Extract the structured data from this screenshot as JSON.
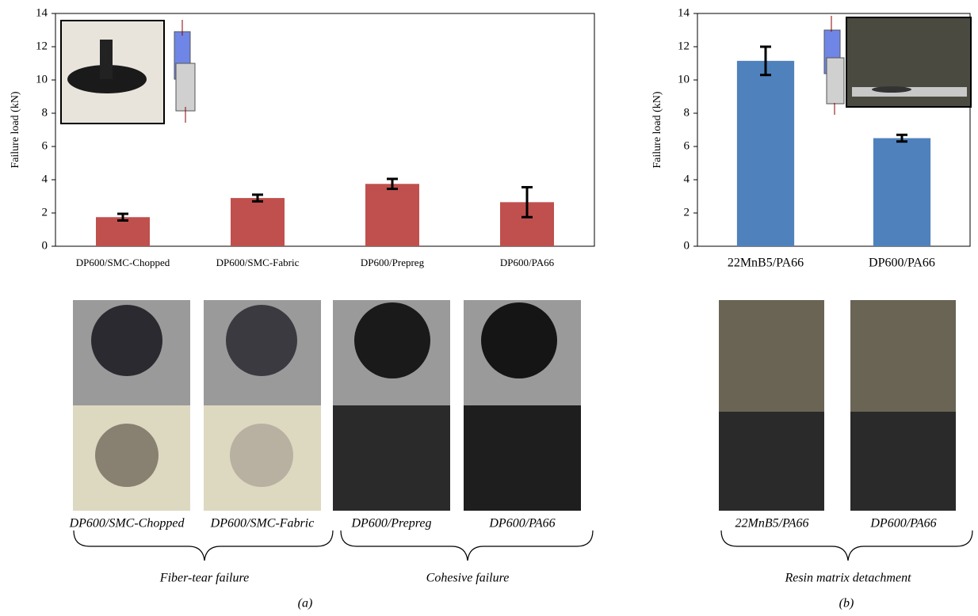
{
  "chart_data": [
    {
      "type": "bar",
      "ylabel": "Failure load  (kN)",
      "categories": [
        "DP600/SMC-Chopped",
        "DP600/SMC-Fabric",
        "DP600/Prepreg",
        "DP600/PA66"
      ],
      "values": [
        1.75,
        2.9,
        3.75,
        2.65
      ],
      "errors": [
        0.2,
        0.2,
        0.3,
        0.9
      ],
      "color": "#c0504d",
      "ylim": [
        0,
        14
      ],
      "yticks": [
        0,
        2,
        4,
        6,
        8,
        10,
        12,
        14
      ]
    },
    {
      "type": "bar",
      "ylabel": "Failure load  (kN)",
      "categories": [
        "22MnB5/PA66",
        "DP600/PA66"
      ],
      "values": [
        11.15,
        6.5
      ],
      "errors": [
        0.85,
        0.2
      ],
      "color": "#4f81bd",
      "ylim": [
        0,
        14
      ],
      "yticks": [
        0,
        2,
        4,
        6,
        8,
        10,
        12,
        14
      ]
    }
  ],
  "figure": {
    "photo_captions_a": [
      "DP600/SMC-Chopped",
      "DP600/SMC-Fabric",
      "DP600/Prepreg",
      "DP600/PA66"
    ],
    "photo_captions_b": [
      "22MnB5/PA66",
      "DP600/PA66"
    ],
    "group_labels": [
      "Fiber-tear failure",
      "Cohesive failure",
      "Resin matrix detachment"
    ],
    "panel_labels": [
      "(a)",
      "(b)"
    ]
  }
}
